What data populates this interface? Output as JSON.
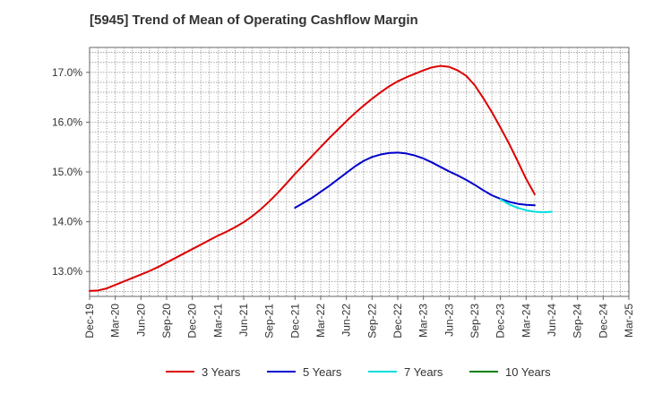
{
  "chart_data": {
    "type": "line",
    "title": "[5945]  Trend of Mean of Operating Cashflow Margin",
    "xlabel": "",
    "ylabel": "",
    "ylim": [
      12.5,
      17.5
    ],
    "y_ticks": [
      13.0,
      14.0,
      15.0,
      16.0,
      17.0
    ],
    "y_tick_labels": [
      "13.0%",
      "14.0%",
      "15.0%",
      "16.0%",
      "17.0%"
    ],
    "grid": true,
    "legend_position": "bottom",
    "x_ticks": [
      "Dec-19",
      "Mar-20",
      "Jun-20",
      "Sep-20",
      "Dec-20",
      "Mar-21",
      "Jun-21",
      "Sep-21",
      "Dec-21",
      "Mar-22",
      "Jun-22",
      "Sep-22",
      "Dec-22",
      "Mar-23",
      "Jun-23",
      "Sep-23",
      "Dec-23",
      "Mar-24",
      "Jun-24",
      "Sep-24",
      "Dec-24",
      "Mar-25"
    ],
    "series": [
      {
        "name": "3 Years",
        "color": "#dd0000",
        "points": [
          [
            "Dec-19",
            12.61
          ],
          [
            "Jan-20",
            12.62
          ],
          [
            "Feb-20",
            12.66
          ],
          [
            "Mar-20",
            12.73
          ],
          [
            "Apr-20",
            12.8
          ],
          [
            "May-20",
            12.87
          ],
          [
            "Jun-20",
            12.94
          ],
          [
            "Jul-20",
            13.01
          ],
          [
            "Aug-20",
            13.09
          ],
          [
            "Sep-20",
            13.18
          ],
          [
            "Oct-20",
            13.27
          ],
          [
            "Nov-20",
            13.36
          ],
          [
            "Dec-20",
            13.45
          ],
          [
            "Jan-21",
            13.54
          ],
          [
            "Feb-21",
            13.63
          ],
          [
            "Mar-21",
            13.72
          ],
          [
            "Apr-21",
            13.8
          ],
          [
            "May-21",
            13.89
          ],
          [
            "Jun-21",
            13.99
          ],
          [
            "Jul-21",
            14.11
          ],
          [
            "Aug-21",
            14.25
          ],
          [
            "Sep-21",
            14.41
          ],
          [
            "Oct-21",
            14.58
          ],
          [
            "Nov-21",
            14.77
          ],
          [
            "Dec-21",
            14.96
          ],
          [
            "Jan-22",
            15.14
          ],
          [
            "Feb-22",
            15.32
          ],
          [
            "Mar-22",
            15.5
          ],
          [
            "Apr-22",
            15.68
          ],
          [
            "May-22",
            15.85
          ],
          [
            "Jun-22",
            16.02
          ],
          [
            "Jul-22",
            16.18
          ],
          [
            "Aug-22",
            16.33
          ],
          [
            "Sep-22",
            16.47
          ],
          [
            "Oct-22",
            16.6
          ],
          [
            "Nov-22",
            16.72
          ],
          [
            "Dec-22",
            16.82
          ],
          [
            "Jan-23",
            16.9
          ],
          [
            "Feb-23",
            16.97
          ],
          [
            "Mar-23",
            17.04
          ],
          [
            "Apr-23",
            17.1
          ],
          [
            "May-23",
            17.13
          ],
          [
            "Jun-23",
            17.11
          ],
          [
            "Jul-23",
            17.04
          ],
          [
            "Aug-23",
            16.93
          ],
          [
            "Sep-23",
            16.74
          ],
          [
            "Oct-23",
            16.48
          ],
          [
            "Nov-23",
            16.2
          ],
          [
            "Dec-23",
            15.89
          ],
          [
            "Jan-24",
            15.57
          ],
          [
            "Feb-24",
            15.22
          ],
          [
            "Mar-24",
            14.86
          ],
          [
            "Apr-24",
            14.55
          ]
        ]
      },
      {
        "name": "5 Years",
        "color": "#0000cc",
        "points": [
          [
            "Dec-21",
            14.28
          ],
          [
            "Jan-22",
            14.38
          ],
          [
            "Feb-22",
            14.48
          ],
          [
            "Mar-22",
            14.6
          ],
          [
            "Apr-22",
            14.72
          ],
          [
            "May-22",
            14.85
          ],
          [
            "Jun-22",
            14.98
          ],
          [
            "Jul-22",
            15.11
          ],
          [
            "Aug-22",
            15.22
          ],
          [
            "Sep-22",
            15.3
          ],
          [
            "Oct-22",
            15.35
          ],
          [
            "Nov-22",
            15.38
          ],
          [
            "Dec-22",
            15.39
          ],
          [
            "Jan-23",
            15.37
          ],
          [
            "Feb-23",
            15.33
          ],
          [
            "Mar-23",
            15.27
          ],
          [
            "Apr-23",
            15.19
          ],
          [
            "May-23",
            15.1
          ],
          [
            "Jun-23",
            15.01
          ],
          [
            "Jul-23",
            14.93
          ],
          [
            "Aug-23",
            14.84
          ],
          [
            "Sep-23",
            14.74
          ],
          [
            "Oct-23",
            14.63
          ],
          [
            "Nov-23",
            14.53
          ],
          [
            "Dec-23",
            14.46
          ],
          [
            "Jan-24",
            14.4
          ],
          [
            "Feb-24",
            14.36
          ],
          [
            "Mar-24",
            14.34
          ],
          [
            "Apr-24",
            14.33
          ]
        ]
      },
      {
        "name": "7 Years",
        "color": "#00dddd",
        "points": [
          [
            "Dec-23",
            14.45
          ],
          [
            "Jan-24",
            14.35
          ],
          [
            "Feb-24",
            14.28
          ],
          [
            "Mar-24",
            14.23
          ],
          [
            "Apr-24",
            14.2
          ],
          [
            "May-24",
            14.19
          ],
          [
            "Jun-24",
            14.2
          ]
        ]
      },
      {
        "name": "10 Years",
        "color": "#008000",
        "points": []
      }
    ]
  }
}
